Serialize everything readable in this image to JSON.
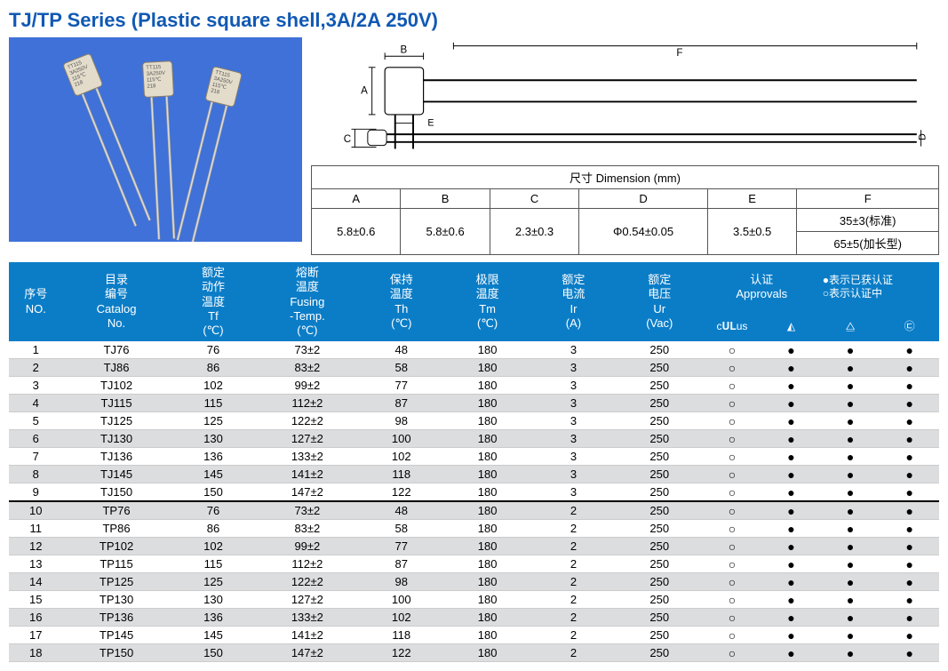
{
  "title": "TJ/TP Series (Plastic square shell,3A/2A 250V)",
  "dimension": {
    "header": "尺寸 Dimension (mm)",
    "cols": [
      "A",
      "B",
      "C",
      "D",
      "E",
      "F"
    ],
    "vals": [
      "5.8±0.6",
      "5.8±0.6",
      "2.3±0.3",
      "Φ0.54±0.05",
      "3.5±0.5"
    ],
    "f1": "35±3(标准)",
    "f2": "65±5(加长型)"
  },
  "main_headers": {
    "no": "序号\nNO.",
    "catalog": "目录\n编号\nCatalog\nNo.",
    "tf": "额定\n动作\n温度\nTf\n(℃)",
    "fusing": "熔断\n温度\nFusing\n-Temp.\n(℃)",
    "th": "保持\n温度\nTh\n(℃)",
    "tm": "极限\n温度\nTm\n(℃)",
    "ir": "额定\n电流\nIr\n(A)",
    "ur": "额定\n电压\nUr\n(Vac)",
    "approvals": "认证\nApprovals",
    "legend1": "●表示已获认证",
    "legend2": "○表示认证中"
  },
  "approval_icons": [
    "c𝐔𝐋us",
    "◭",
    "⧋",
    "㉢"
  ],
  "rows": [
    {
      "no": "1",
      "cat": "TJ76",
      "tf": "76",
      "fus": "73±2",
      "th": "48",
      "tm": "180",
      "ir": "3",
      "ur": "250",
      "a": [
        "○",
        "●",
        "●",
        "●"
      ]
    },
    {
      "no": "2",
      "cat": "TJ86",
      "tf": "86",
      "fus": "83±2",
      "th": "58",
      "tm": "180",
      "ir": "3",
      "ur": "250",
      "a": [
        "○",
        "●",
        "●",
        "●"
      ]
    },
    {
      "no": "3",
      "cat": "TJ102",
      "tf": "102",
      "fus": "99±2",
      "th": "77",
      "tm": "180",
      "ir": "3",
      "ur": "250",
      "a": [
        "○",
        "●",
        "●",
        "●"
      ]
    },
    {
      "no": "4",
      "cat": "TJ115",
      "tf": "115",
      "fus": "112±2",
      "th": "87",
      "tm": "180",
      "ir": "3",
      "ur": "250",
      "a": [
        "○",
        "●",
        "●",
        "●"
      ]
    },
    {
      "no": "5",
      "cat": "TJ125",
      "tf": "125",
      "fus": "122±2",
      "th": "98",
      "tm": "180",
      "ir": "3",
      "ur": "250",
      "a": [
        "○",
        "●",
        "●",
        "●"
      ]
    },
    {
      "no": "6",
      "cat": "TJ130",
      "tf": "130",
      "fus": "127±2",
      "th": "100",
      "tm": "180",
      "ir": "3",
      "ur": "250",
      "a": [
        "○",
        "●",
        "●",
        "●"
      ]
    },
    {
      "no": "7",
      "cat": "TJ136",
      "tf": "136",
      "fus": "133±2",
      "th": "102",
      "tm": "180",
      "ir": "3",
      "ur": "250",
      "a": [
        "○",
        "●",
        "●",
        "●"
      ]
    },
    {
      "no": "8",
      "cat": "TJ145",
      "tf": "145",
      "fus": "141±2",
      "th": "118",
      "tm": "180",
      "ir": "3",
      "ur": "250",
      "a": [
        "○",
        "●",
        "●",
        "●"
      ]
    },
    {
      "no": "9",
      "cat": "TJ150",
      "tf": "150",
      "fus": "147±2",
      "th": "122",
      "tm": "180",
      "ir": "3",
      "ur": "250",
      "a": [
        "○",
        "●",
        "●",
        "●"
      ]
    },
    {
      "no": "10",
      "cat": "TP76",
      "tf": "76",
      "fus": "73±2",
      "th": "48",
      "tm": "180",
      "ir": "2",
      "ur": "250",
      "a": [
        "○",
        "●",
        "●",
        "●"
      ],
      "sep": true
    },
    {
      "no": "11",
      "cat": "TP86",
      "tf": "86",
      "fus": "83±2",
      "th": "58",
      "tm": "180",
      "ir": "2",
      "ur": "250",
      "a": [
        "○",
        "●",
        "●",
        "●"
      ]
    },
    {
      "no": "12",
      "cat": "TP102",
      "tf": "102",
      "fus": "99±2",
      "th": "77",
      "tm": "180",
      "ir": "2",
      "ur": "250",
      "a": [
        "○",
        "●",
        "●",
        "●"
      ]
    },
    {
      "no": "13",
      "cat": "TP115",
      "tf": "115",
      "fus": "112±2",
      "th": "87",
      "tm": "180",
      "ir": "2",
      "ur": "250",
      "a": [
        "○",
        "●",
        "●",
        "●"
      ]
    },
    {
      "no": "14",
      "cat": "TP125",
      "tf": "125",
      "fus": "122±2",
      "th": "98",
      "tm": "180",
      "ir": "2",
      "ur": "250",
      "a": [
        "○",
        "●",
        "●",
        "●"
      ]
    },
    {
      "no": "15",
      "cat": "TP130",
      "tf": "130",
      "fus": "127±2",
      "th": "100",
      "tm": "180",
      "ir": "2",
      "ur": "250",
      "a": [
        "○",
        "●",
        "●",
        "●"
      ]
    },
    {
      "no": "16",
      "cat": "TP136",
      "tf": "136",
      "fus": "133±2",
      "th": "102",
      "tm": "180",
      "ir": "2",
      "ur": "250",
      "a": [
        "○",
        "●",
        "●",
        "●"
      ]
    },
    {
      "no": "17",
      "cat": "TP145",
      "tf": "145",
      "fus": "141±2",
      "th": "118",
      "tm": "180",
      "ir": "2",
      "ur": "250",
      "a": [
        "○",
        "●",
        "●",
        "●"
      ]
    },
    {
      "no": "18",
      "cat": "TP150",
      "tf": "150",
      "fus": "147±2",
      "th": "122",
      "tm": "180",
      "ir": "2",
      "ur": "250",
      "a": [
        "○",
        "●",
        "●",
        "●"
      ]
    }
  ],
  "colors": {
    "title": "#1159b3",
    "photo_bg": "#3f71d8",
    "thead_bg": "#0b7dc7",
    "row_even": "#dcddde",
    "row_odd": "#ffffff"
  }
}
